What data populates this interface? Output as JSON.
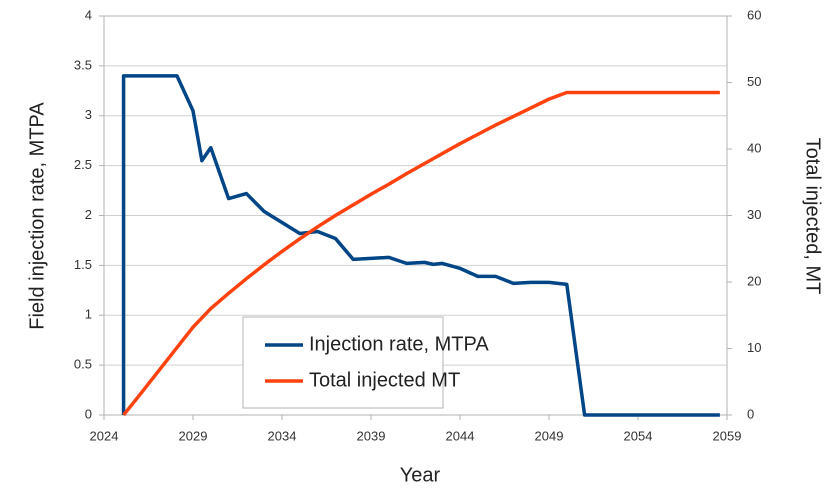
{
  "chart_data": {
    "type": "line",
    "x_label": "Year",
    "y_label": "Field injection rate, MTPA",
    "y2_label": "Total injected, MT",
    "xlim": [
      2024,
      2059
    ],
    "xticks": [
      2024,
      2029,
      2034,
      2039,
      2044,
      2049,
      2054,
      2059
    ],
    "ylim": [
      0,
      4
    ],
    "yticks": [
      0,
      0.5,
      1,
      1.5,
      2,
      2.5,
      3,
      3.5,
      4
    ],
    "y2lim": [
      0,
      60
    ],
    "y2ticks": [
      0,
      10,
      20,
      30,
      40,
      50,
      60
    ],
    "grid": true,
    "legend": "bottom-center",
    "series": [
      {
        "name": "Injection rate, MTPA",
        "color": "#004586",
        "x": [
          2025.1,
          2025.1,
          2028.1,
          2029,
          2029.5,
          2030,
          2031,
          2032,
          2033,
          2034,
          2035,
          2036,
          2037,
          2038,
          2039,
          2040,
          2041,
          2042,
          2042.5,
          2043,
          2044,
          2045,
          2046,
          2047,
          2048,
          2049,
          2050,
          2051,
          2058.6
        ],
        "values": [
          0,
          3.4,
          3.4,
          3.05,
          2.55,
          2.68,
          2.17,
          2.22,
          2.04,
          1.93,
          1.82,
          1.84,
          1.77,
          1.56,
          1.57,
          1.58,
          1.52,
          1.53,
          1.51,
          1.52,
          1.47,
          1.39,
          1.39,
          1.32,
          1.33,
          1.33,
          1.31,
          0,
          0
        ]
      },
      {
        "name": "Total injected MT",
        "color": "#ff420e",
        "axis": "y2",
        "x": [
          2025.1,
          2026,
          2027,
          2028,
          2029,
          2030,
          2031,
          2032,
          2033,
          2034,
          2035,
          2036,
          2037,
          2038,
          2039,
          2040,
          2041,
          2042,
          2043,
          2044,
          2045,
          2046,
          2047,
          2048,
          2049,
          2050,
          2058.6
        ],
        "values": [
          0,
          3,
          6.4,
          9.8,
          13.2,
          16,
          18.3,
          20.5,
          22.6,
          24.6,
          26.5,
          28.3,
          30,
          31.6,
          33.2,
          34.7,
          36.3,
          37.8,
          39.3,
          40.8,
          42.2,
          43.6,
          44.9,
          46.2,
          47.5,
          48.5,
          48.5
        ]
      }
    ]
  }
}
